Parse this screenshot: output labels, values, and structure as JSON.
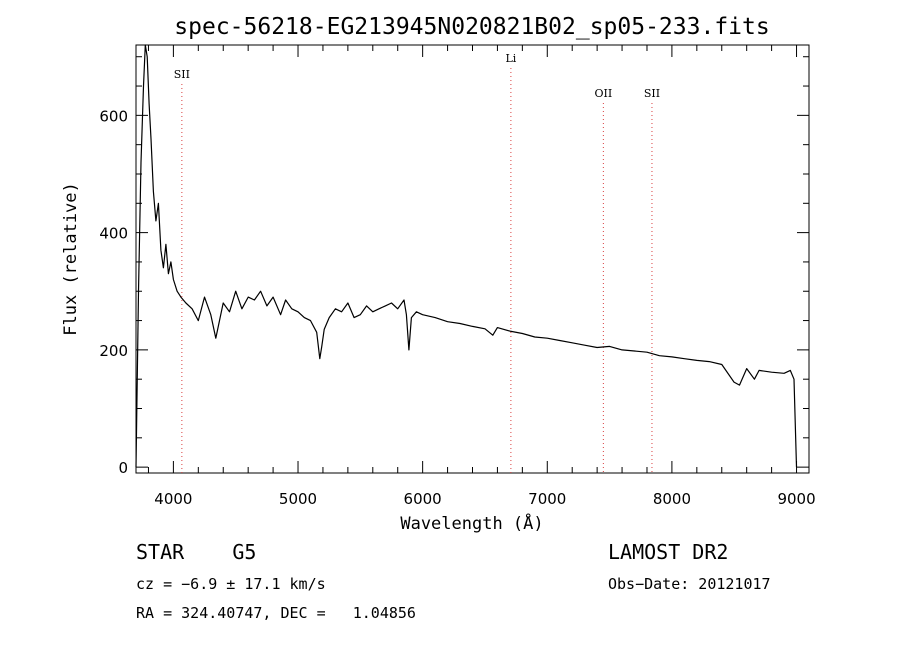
{
  "chart_data": {
    "type": "line",
    "title": "spec-56218-EG213945N020821B02_sp05-233.fits",
    "xlabel": "Wavelength (Å)",
    "ylabel": "Flux (relative)",
    "xlim": [
      3700,
      9100
    ],
    "ylim": [
      -10,
      720
    ],
    "xticks": [
      4000,
      5000,
      6000,
      7000,
      8000,
      9000
    ],
    "yticks": [
      0,
      200,
      400,
      600
    ],
    "grid": false,
    "series": [
      {
        "x": [
          3700,
          3720,
          3740,
          3760,
          3775,
          3790,
          3805,
          3820,
          3840,
          3860,
          3880,
          3900,
          3920,
          3940,
          3960,
          3980,
          4000,
          4030,
          4060,
          4100,
          4150,
          4200,
          4250,
          4300,
          4340,
          4400,
          4450,
          4500,
          4550,
          4600,
          4650,
          4700,
          4750,
          4800,
          4860,
          4900,
          4950,
          5000,
          5050,
          5100,
          5150,
          5175,
          5190,
          5210,
          5250,
          5300,
          5350,
          5400,
          5450,
          5500,
          5550,
          5600,
          5650,
          5700,
          5750,
          5800,
          5850,
          5870,
          5890,
          5910,
          5950,
          6000,
          6100,
          6200,
          6300,
          6400,
          6500,
          6563,
          6600,
          6700,
          6800,
          6900,
          7000,
          7100,
          7200,
          7300,
          7400,
          7500,
          7600,
          7700,
          7800,
          7900,
          8000,
          8100,
          8200,
          8300,
          8400,
          8498,
          8542,
          8600,
          8662,
          8700,
          8800,
          8900,
          8950,
          8980,
          9000
        ],
        "y": [
          0,
          300,
          520,
          650,
          720,
          700,
          620,
          560,
          470,
          420,
          450,
          370,
          340,
          380,
          330,
          350,
          320,
          300,
          290,
          280,
          270,
          250,
          290,
          260,
          220,
          280,
          265,
          300,
          270,
          290,
          285,
          300,
          275,
          290,
          260,
          285,
          270,
          265,
          255,
          250,
          230,
          185,
          205,
          235,
          255,
          270,
          265,
          280,
          255,
          260,
          275,
          265,
          270,
          275,
          280,
          270,
          285,
          260,
          200,
          255,
          265,
          260,
          255,
          248,
          245,
          240,
          236,
          225,
          238,
          232,
          228,
          222,
          220,
          216,
          212,
          208,
          204,
          206,
          200,
          198,
          196,
          190,
          188,
          185,
          182,
          180,
          175,
          145,
          140,
          168,
          150,
          165,
          162,
          160,
          165,
          150,
          0
        ]
      }
    ],
    "line_markers": [
      {
        "label": "SII",
        "x": 4068,
        "color": "#d94040"
      },
      {
        "label": "Li",
        "x": 6708,
        "color": "#d94040"
      },
      {
        "label": "OII",
        "x": 7450,
        "color": "#d94040"
      },
      {
        "label": "SII",
        "x": 7840,
        "color": "#d94040"
      }
    ],
    "line_color": "#000000"
  },
  "footer": {
    "object_class": "STAR    G5",
    "survey": "LAMOST DR2",
    "cz": "cz = −6.9 ± 17.1 km/s",
    "obs_date": "Obs−Date: 20121017",
    "radec": "RA = 324.40747, DEC =   1.04856"
  }
}
